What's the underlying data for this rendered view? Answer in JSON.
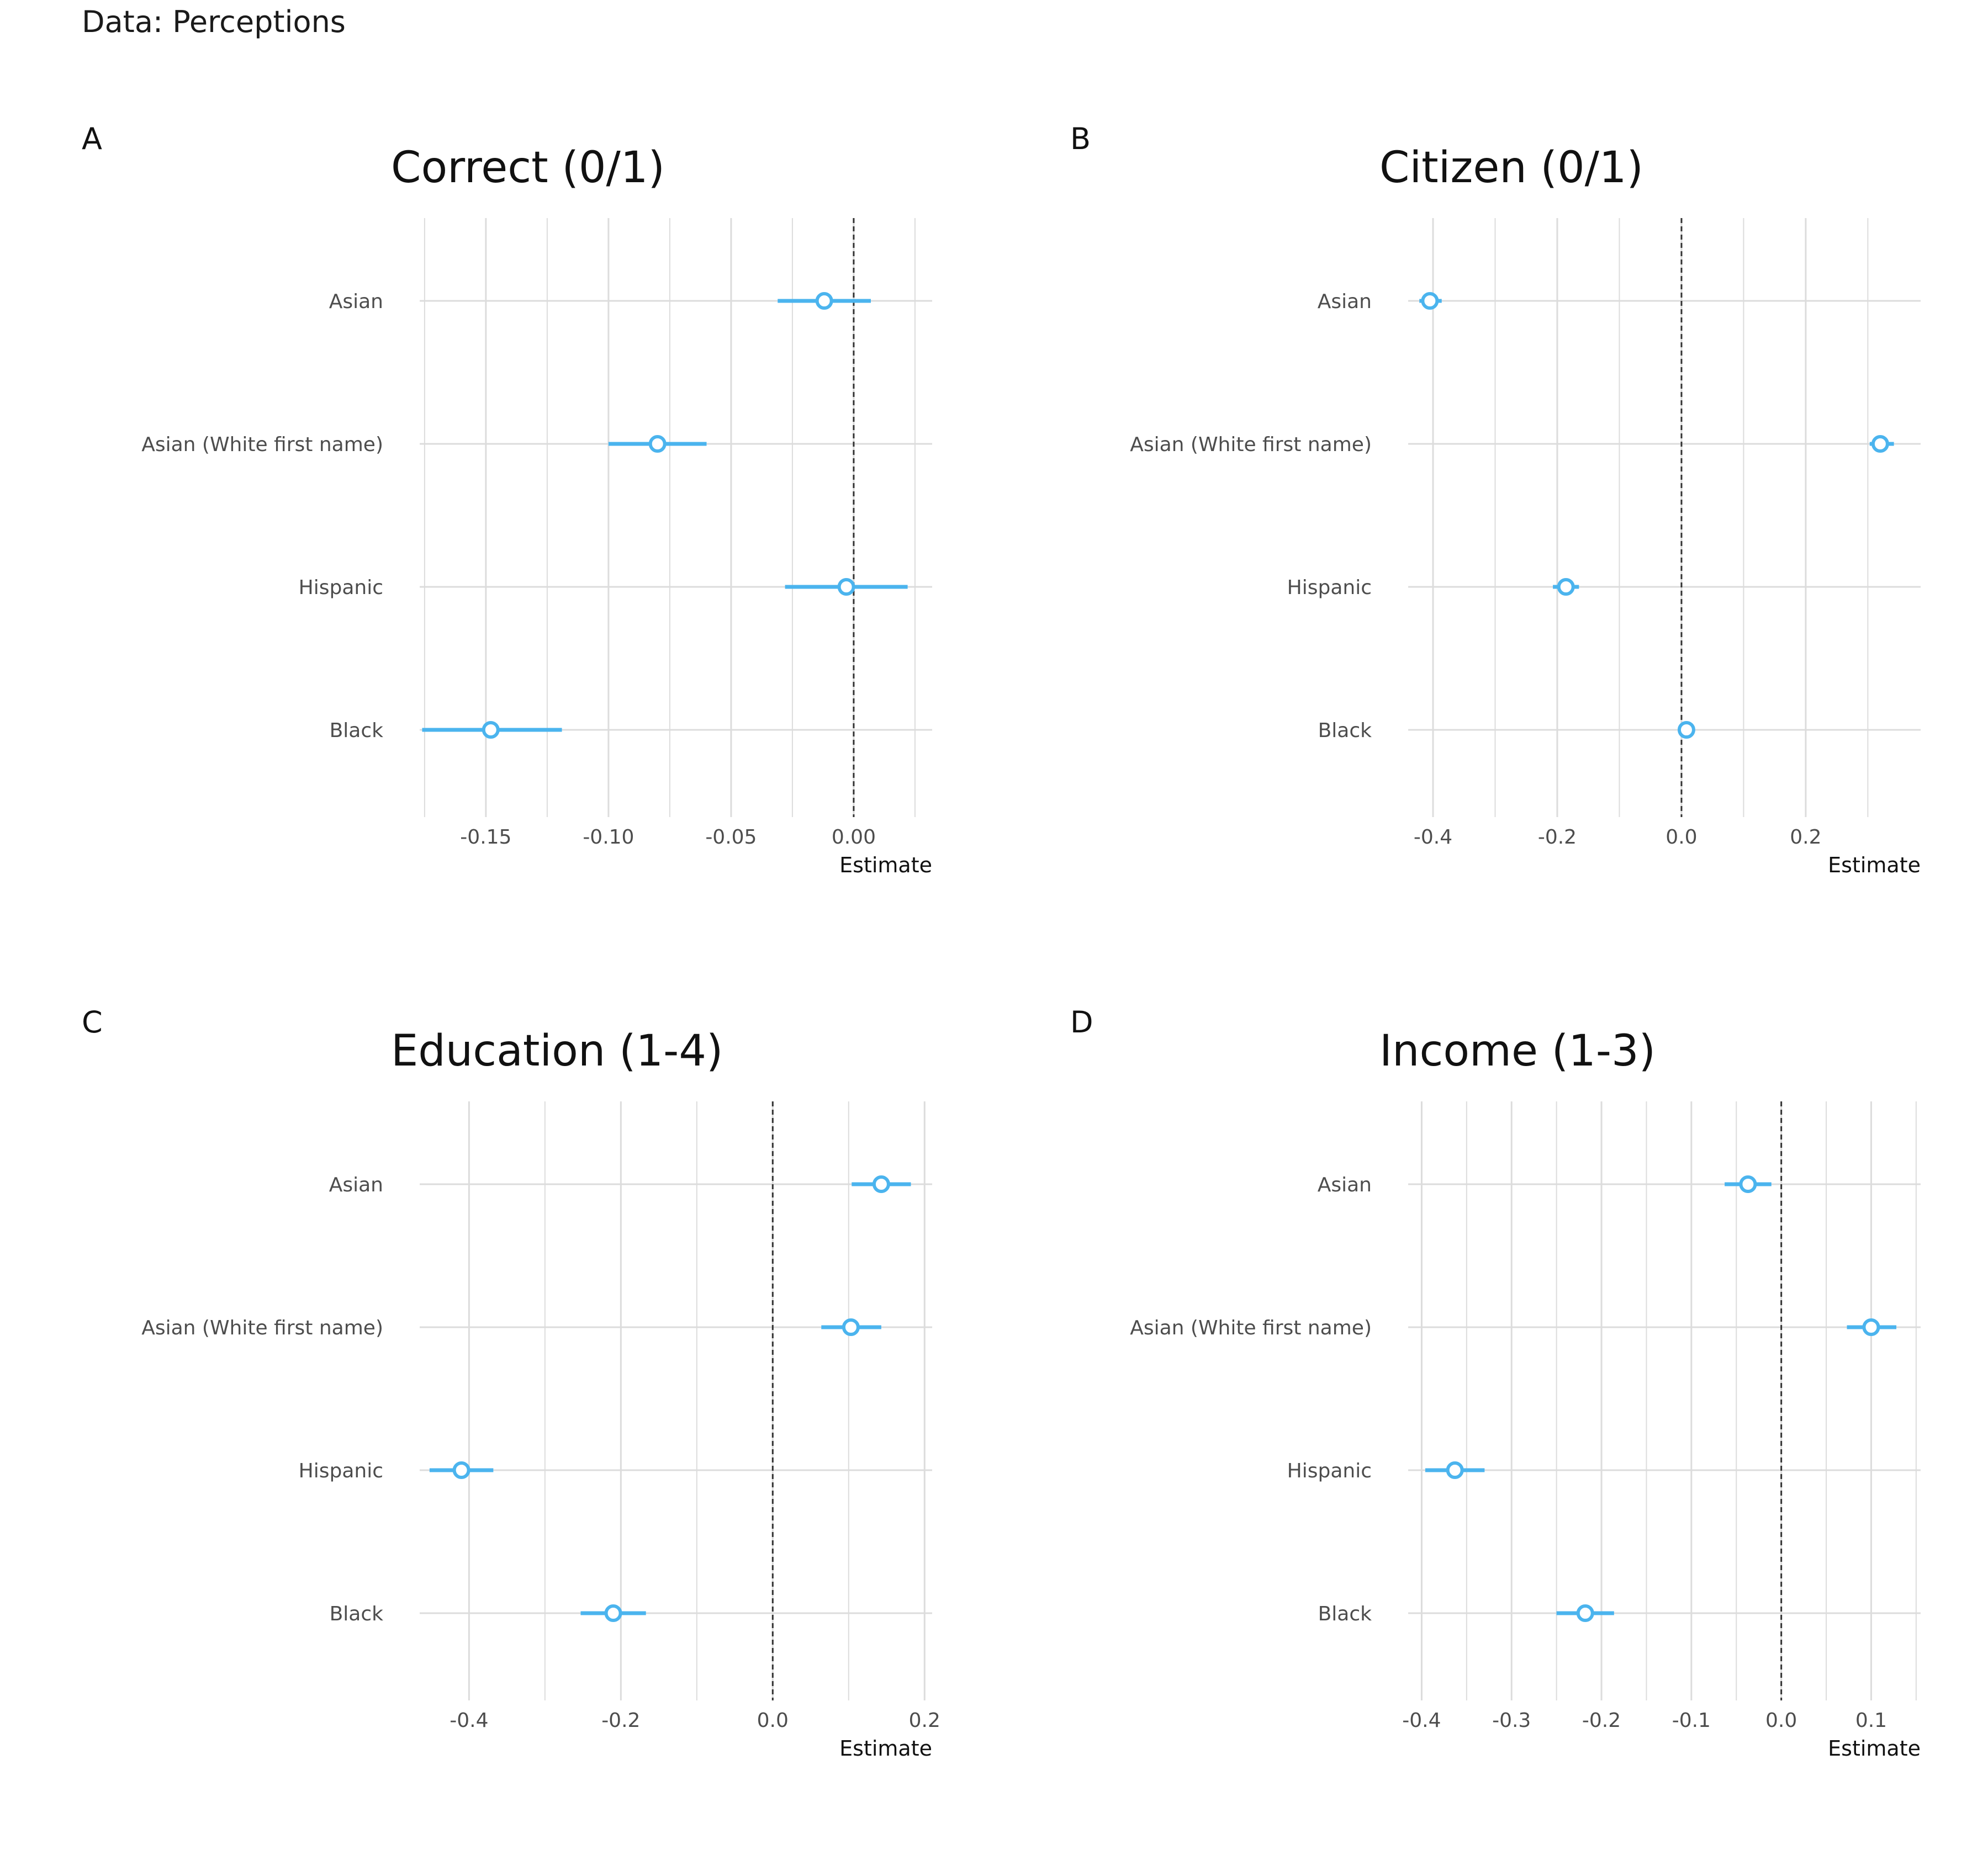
{
  "header": {
    "text": "Data: Perceptions"
  },
  "colors": {
    "point": "#4bb4ee",
    "grid": "#dcdcdc",
    "zero": "#333333"
  },
  "chart_data": [
    {
      "type": "dot-whisker",
      "tag": "A",
      "title": "Correct (0/1)",
      "xlabel": "Estimate",
      "categories": [
        "Asian",
        "Asian (White first name)",
        "Hispanic",
        "Black"
      ],
      "estimates": [
        -0.012,
        -0.08,
        -0.003,
        -0.148
      ],
      "ci_low": [
        -0.031,
        -0.1,
        -0.028,
        -0.176
      ],
      "ci_high": [
        0.007,
        -0.06,
        0.022,
        -0.119
      ],
      "xlim": [
        -0.177,
        0.032
      ],
      "ticks": [
        -0.15,
        -0.1,
        -0.05,
        0.0
      ],
      "tick_labels": [
        "-0.15",
        "-0.10",
        "-0.05",
        "0.00"
      ],
      "minor_ticks": [
        -0.175,
        -0.125,
        -0.075,
        -0.025,
        0.025
      ]
    },
    {
      "type": "dot-whisker",
      "tag": "B",
      "title": "Citizen (0/1)",
      "xlabel": "Estimate",
      "categories": [
        "Asian",
        "Asian (White first name)",
        "Hispanic",
        "Black"
      ],
      "estimates": [
        -0.405,
        0.32,
        -0.186,
        0.008
      ],
      "ci_low": [
        -0.422,
        0.303,
        -0.207,
        0.0
      ],
      "ci_high": [
        -0.386,
        0.342,
        -0.165,
        0.016
      ],
      "xlim": [
        -0.44,
        0.385
      ],
      "ticks": [
        -0.4,
        -0.2,
        0.0,
        0.2
      ],
      "tick_labels": [
        "-0.4",
        "-0.2",
        "0.0",
        "0.2"
      ],
      "minor_ticks": [
        -0.3,
        -0.1,
        0.1,
        0.3
      ]
    },
    {
      "type": "dot-whisker",
      "tag": "C",
      "title": "Education (1-4)",
      "xlabel": "Estimate",
      "categories": [
        "Asian",
        "Asian (White first name)",
        "Hispanic",
        "Black"
      ],
      "estimates": [
        0.143,
        0.103,
        -0.41,
        -0.21
      ],
      "ci_low": [
        0.104,
        0.064,
        -0.452,
        -0.253
      ],
      "ci_high": [
        0.182,
        0.143,
        -0.368,
        -0.167
      ],
      "xlim": [
        -0.465,
        0.21
      ],
      "ticks": [
        -0.4,
        -0.2,
        0.0,
        0.2
      ],
      "tick_labels": [
        "-0.4",
        "-0.2",
        "0.0",
        "0.2"
      ],
      "minor_ticks": [
        -0.3,
        -0.1,
        0.1
      ]
    },
    {
      "type": "dot-whisker",
      "tag": "D",
      "title": "Income (1-3)",
      "xlabel": "Estimate",
      "categories": [
        "Asian",
        "Asian (White first name)",
        "Hispanic",
        "Black"
      ],
      "estimates": [
        -0.037,
        0.1,
        -0.363,
        -0.218
      ],
      "ci_low": [
        -0.063,
        0.073,
        -0.396,
        -0.25
      ],
      "ci_high": [
        -0.011,
        0.128,
        -0.33,
        -0.186
      ],
      "xlim": [
        -0.415,
        0.155
      ],
      "ticks": [
        -0.4,
        -0.3,
        -0.2,
        -0.1,
        0.0,
        0.1
      ],
      "tick_labels": [
        "-0.4",
        "-0.3",
        "-0.2",
        "-0.1",
        "0.0",
        "0.1"
      ],
      "minor_ticks": [
        -0.35,
        -0.25,
        -0.15,
        -0.05,
        0.05,
        0.15
      ]
    }
  ]
}
